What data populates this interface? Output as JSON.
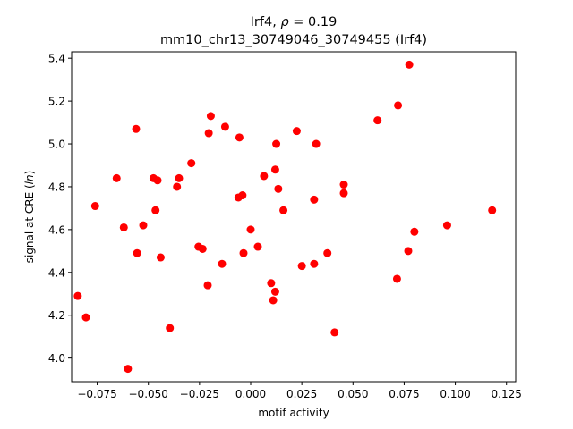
{
  "chart_data": {
    "type": "scatter",
    "title_line1_prefix": "Irf4, ",
    "title_line1_rho": "ρ",
    "title_line1_suffix": " = 0.19",
    "title_line2": "mm10_chr13_30749046_30749455 (Irf4)",
    "xlabel": "motif activity",
    "ylabel_prefix": "signal at CRE (",
    "ylabel_italic": "ln",
    "ylabel_suffix": ")",
    "xlim": [
      -0.0875,
      0.1295
    ],
    "ylim": [
      3.89,
      5.43
    ],
    "xticks": [
      -0.075,
      -0.05,
      -0.025,
      0.0,
      0.025,
      0.05,
      0.075,
      0.1,
      0.125
    ],
    "xtick_labels": [
      "−0.075",
      "−0.050",
      "−0.025",
      "0.000",
      "0.025",
      "0.050",
      "0.075",
      "0.100",
      "0.125"
    ],
    "yticks": [
      4.0,
      4.2,
      4.4,
      4.6,
      4.8,
      5.0,
      5.2,
      5.4
    ],
    "ytick_labels": [
      "4.0",
      "4.2",
      "4.4",
      "4.6",
      "4.8",
      "5.0",
      "5.2",
      "5.4"
    ],
    "marker_color": "#ff0000",
    "grid": false,
    "points": [
      {
        "x": -0.0845,
        "y": 4.29
      },
      {
        "x": -0.0805,
        "y": 4.19
      },
      {
        "x": -0.076,
        "y": 4.71
      },
      {
        "x": -0.0655,
        "y": 4.84
      },
      {
        "x": -0.062,
        "y": 4.61
      },
      {
        "x": -0.06,
        "y": 3.95
      },
      {
        "x": -0.056,
        "y": 5.07
      },
      {
        "x": -0.0555,
        "y": 4.49
      },
      {
        "x": -0.0525,
        "y": 4.62
      },
      {
        "x": -0.0475,
        "y": 4.84
      },
      {
        "x": -0.0465,
        "y": 4.69
      },
      {
        "x": -0.0455,
        "y": 4.83
      },
      {
        "x": -0.044,
        "y": 4.47
      },
      {
        "x": -0.0395,
        "y": 4.14
      },
      {
        "x": -0.036,
        "y": 4.8
      },
      {
        "x": -0.035,
        "y": 4.84
      },
      {
        "x": -0.029,
        "y": 4.91
      },
      {
        "x": -0.0255,
        "y": 4.52
      },
      {
        "x": -0.0235,
        "y": 4.51
      },
      {
        "x": -0.021,
        "y": 4.34
      },
      {
        "x": -0.0205,
        "y": 5.05
      },
      {
        "x": -0.0195,
        "y": 5.13
      },
      {
        "x": -0.014,
        "y": 4.44
      },
      {
        "x": -0.0125,
        "y": 5.08
      },
      {
        "x": -0.006,
        "y": 4.75
      },
      {
        "x": -0.0055,
        "y": 5.03
      },
      {
        "x": -0.004,
        "y": 4.76
      },
      {
        "x": -0.0035,
        "y": 4.49
      },
      {
        "x": 0.0,
        "y": 4.6
      },
      {
        "x": 0.0035,
        "y": 4.52
      },
      {
        "x": 0.0065,
        "y": 4.85
      },
      {
        "x": 0.01,
        "y": 4.35
      },
      {
        "x": 0.011,
        "y": 4.27
      },
      {
        "x": 0.012,
        "y": 4.31
      },
      {
        "x": 0.012,
        "y": 4.88
      },
      {
        "x": 0.0125,
        "y": 5.0
      },
      {
        "x": 0.0135,
        "y": 4.79
      },
      {
        "x": 0.016,
        "y": 4.69
      },
      {
        "x": 0.0225,
        "y": 5.06
      },
      {
        "x": 0.025,
        "y": 4.43
      },
      {
        "x": 0.031,
        "y": 4.44
      },
      {
        "x": 0.031,
        "y": 4.74
      },
      {
        "x": 0.032,
        "y": 5.0
      },
      {
        "x": 0.0375,
        "y": 4.49
      },
      {
        "x": 0.041,
        "y": 4.12
      },
      {
        "x": 0.0455,
        "y": 4.81
      },
      {
        "x": 0.0455,
        "y": 4.77
      },
      {
        "x": 0.062,
        "y": 5.11
      },
      {
        "x": 0.0715,
        "y": 4.37
      },
      {
        "x": 0.072,
        "y": 5.18
      },
      {
        "x": 0.077,
        "y": 4.5
      },
      {
        "x": 0.0775,
        "y": 5.37
      },
      {
        "x": 0.08,
        "y": 4.59
      },
      {
        "x": 0.096,
        "y": 4.62
      },
      {
        "x": 0.118,
        "y": 4.69
      }
    ]
  }
}
